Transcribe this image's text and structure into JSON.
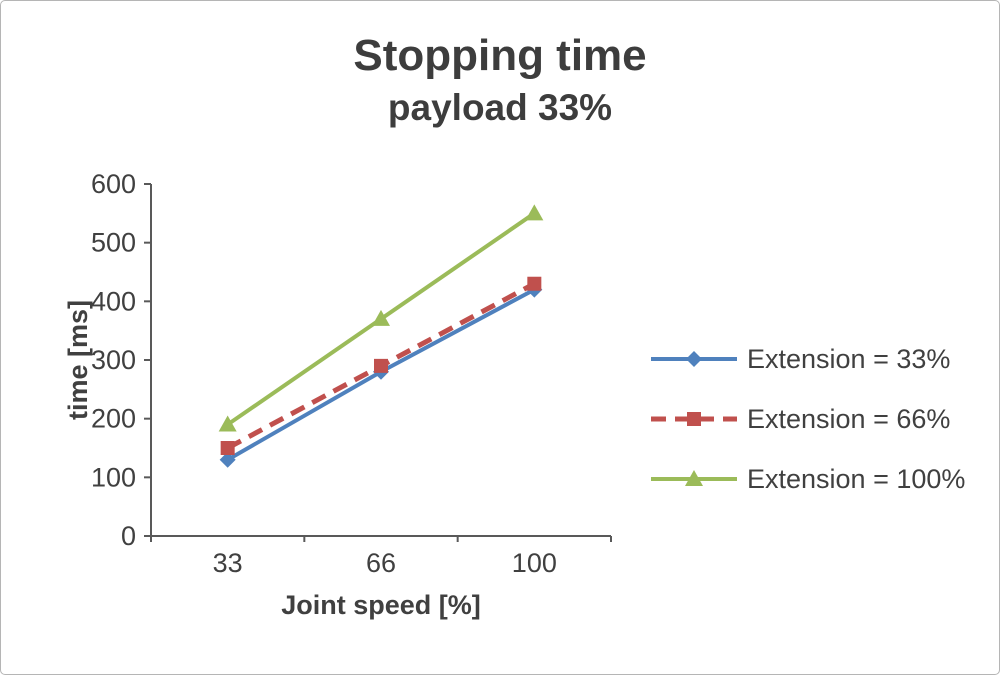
{
  "chart_data": {
    "type": "line",
    "title": "Stopping time",
    "subtitle": "payload 33%",
    "xlabel": "Joint speed [%]",
    "ylabel": "time [ms]",
    "categories": [
      "33",
      "66",
      "100"
    ],
    "ylim": [
      0,
      600
    ],
    "ytick_step": 100,
    "grid": false,
    "legend_position": "right",
    "series": [
      {
        "name": "Extension = 33%",
        "values": [
          130,
          280,
          420
        ],
        "color": "#4f81bd",
        "marker": "diamond",
        "line_style": "solid"
      },
      {
        "name": "Extension = 66%",
        "values": [
          150,
          290,
          430
        ],
        "color": "#c0504d",
        "marker": "square",
        "line_style": "dashed"
      },
      {
        "name": "Extension = 100%",
        "values": [
          190,
          370,
          550
        ],
        "color": "#9bbb59",
        "marker": "triangle",
        "line_style": "solid"
      }
    ]
  },
  "colors": {
    "axis_line": "#595959",
    "text": "#404040"
  }
}
